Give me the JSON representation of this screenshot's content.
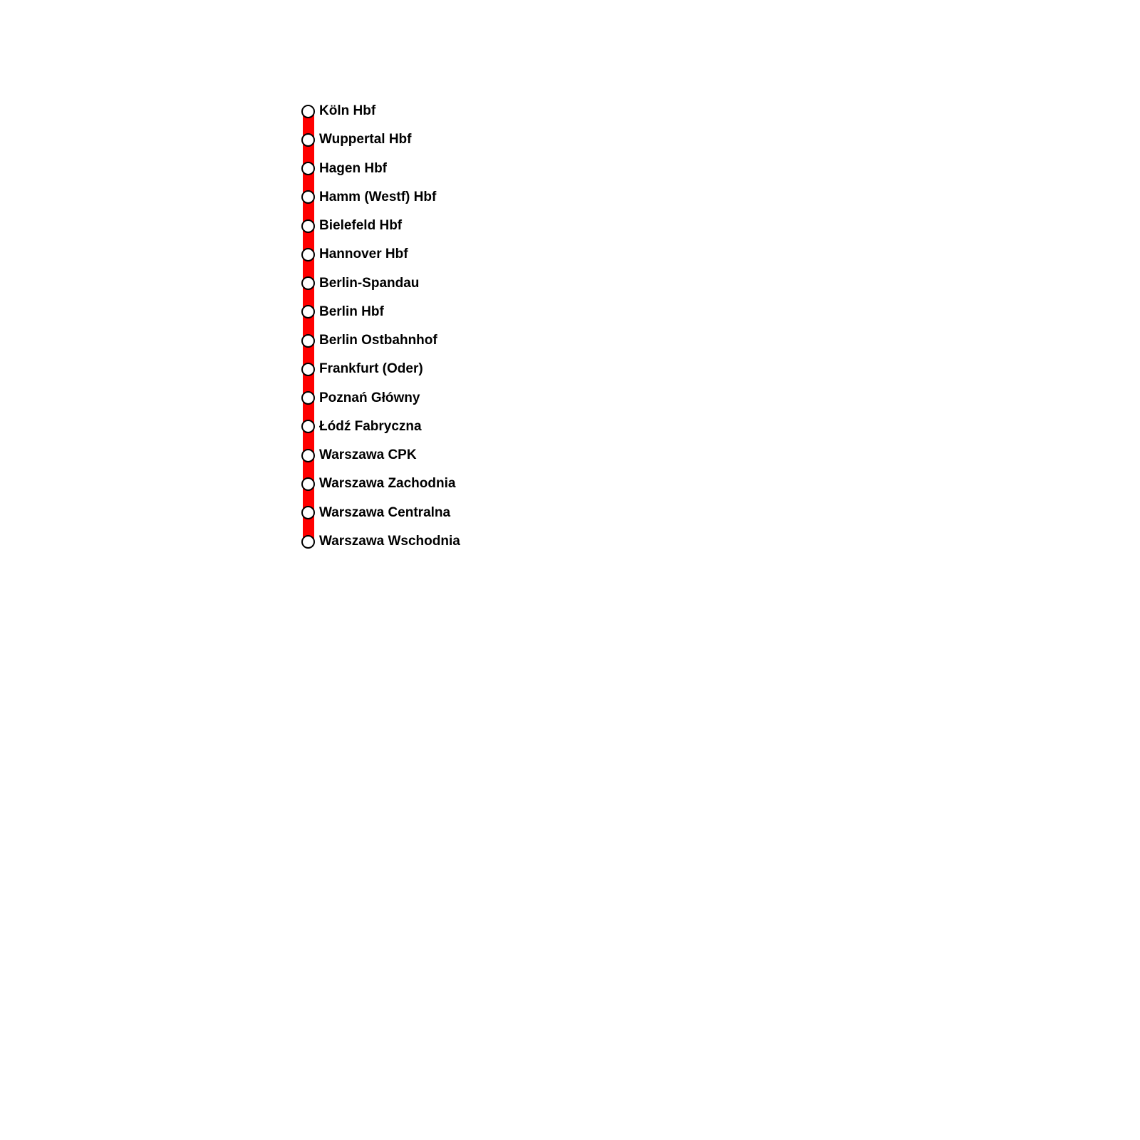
{
  "route": {
    "line_color": "#ff0000",
    "marker_fill": "#ffffff",
    "marker_stroke": "#000000",
    "stations": [
      {
        "label": "Köln Hbf"
      },
      {
        "label": "Wuppertal Hbf"
      },
      {
        "label": "Hagen Hbf"
      },
      {
        "label": "Hamm (Westf) Hbf"
      },
      {
        "label": "Bielefeld Hbf"
      },
      {
        "label": "Hannover Hbf"
      },
      {
        "label": "Berlin-Spandau"
      },
      {
        "label": "Berlin Hbf"
      },
      {
        "label": "Berlin Ostbahnhof"
      },
      {
        "label": "Frankfurt (Oder)"
      },
      {
        "label": "Poznań Główny"
      },
      {
        "label": "Łódź Fabryczna"
      },
      {
        "label": "Warszawa CPK"
      },
      {
        "label": "Warszawa Zachodnia"
      },
      {
        "label": "Warszawa Centralna"
      },
      {
        "label": "Warszawa Wschodnia"
      }
    ]
  }
}
